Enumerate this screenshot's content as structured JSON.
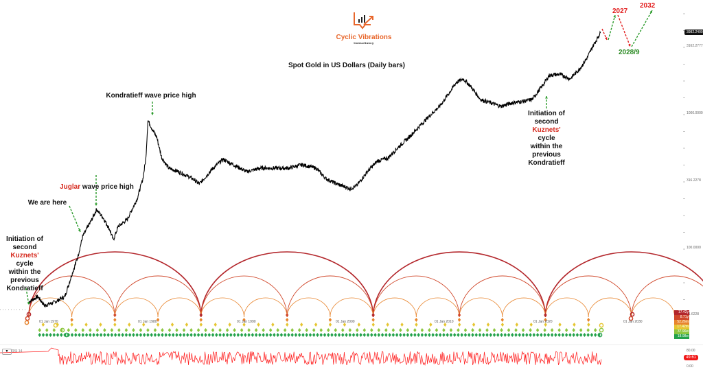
{
  "logo": {
    "name": "Cyclic Vibrations",
    "subtitle": "Consultancy",
    "color": "#e8672c"
  },
  "title": "Spot Gold in US Dollars (Daily bars)",
  "annotations": {
    "kondratieff": "Kondratieff wave price high",
    "juglar_word": "Juglar",
    "juglar_rest": " wave price high",
    "we_are_here": "We are here",
    "left_init_1": "Initiation of",
    "left_init_2": "second",
    "kuznets_word": "Kuznets'",
    "cycle_word": " cycle",
    "within": "within the",
    "previous": "previous",
    "kondratieff_word": "Kondratieff",
    "forecast_2027": "2027",
    "forecast_2028": "2028/9",
    "forecast_2032": "2032"
  },
  "price_axis": {
    "scale": "log",
    "ticks": [
      "3162.2777",
      "1000.0000",
      "316.2278",
      "100.0000",
      "31.6228"
    ],
    "last_price": "3982.2400"
  },
  "time_axis": {
    "ticks": [
      "01 Jan 1970",
      "01 Jan 1980",
      "01 Jan 1990",
      "01 Jan 2000",
      "01 Jan 2010",
      "01 Jan 2020",
      "01 Jan 2030"
    ]
  },
  "cycle_legend": [
    {
      "label": "17.42y",
      "color": "#b3262b"
    },
    {
      "label": "8.71y",
      "color": "#d0472a"
    },
    {
      "label": "52.26m",
      "color": "#e8852e"
    },
    {
      "label": "17.42m",
      "color": "#e6c531"
    },
    {
      "label": "37.96w",
      "color": "#8cc63f"
    },
    {
      "label": "18.98w",
      "color": "#22a24a"
    }
  ],
  "rsi": {
    "label": "RSI 14",
    "ticks": [
      "80.00",
      "0.00"
    ],
    "value": "49.61",
    "color": "#ff1a1a"
  },
  "chart_data": {
    "type": "line",
    "title": "Spot Gold in US Dollars (Daily bars)",
    "yscale": "log",
    "ylim": [
      20,
      5000
    ],
    "xlim": [
      1966.2,
      2032.4
    ],
    "series": [
      {
        "x": [
          1968.06,
          1968.96,
          1969.65,
          1970.7,
          1971.7,
          1972.4,
          1973.0,
          1973.5,
          1974.5,
          1974.9,
          1975.6,
          1976.25,
          1976.6,
          1977.1,
          1978.0,
          1979.0,
          1979.6,
          1979.9,
          1980.1,
          1980.6,
          1981.0,
          1981.5,
          1982.2,
          1983.2,
          1984.6,
          1985.3,
          1986.7,
          1987.7,
          1988.75,
          1990.1,
          1991.5,
          1994.3,
          1995.7,
          1997.1,
          1998.1,
          1999.2,
          2000.6,
          2001.25,
          2002.3,
          2003.3,
          2004.4,
          2005.4,
          2006.5,
          2007.5,
          2008.5,
          2009.6,
          2010.6,
          2011.3,
          2012.0,
          2012.7,
          2013.75,
          2014.8,
          2015.8,
          2016.9,
          2017.9,
          2018.96,
          2020.0,
          2020.7,
          2021.75,
          2022.8,
          2023.8,
          2024.5,
          2025.2,
          2025.9
        ],
        "y": [
          39.5,
          43.4,
          37.2,
          39.5,
          43.4,
          63,
          85,
          121,
          166,
          193,
          166,
          136,
          114,
          144,
          162,
          230,
          327,
          466,
          890,
          745,
          662,
          466,
          391,
          368,
          327,
          298,
          391,
          455,
          414,
          368,
          391,
          391,
          414,
          391,
          327,
          298,
          275,
          291,
          368,
          440,
          466,
          556,
          662,
          791,
          942,
          1125,
          1423,
          1698,
          1800,
          1600,
          1265,
          1193,
          1125,
          1193,
          1221,
          1265,
          1600,
          1910,
          1953,
          1800,
          2148,
          2560,
          3236,
          3982
        ]
      }
    ],
    "cycle_troughs": [
      1968.05,
      1976.6,
      1985.5,
      1995.0,
      2003.75,
      2012.2,
      2020.35,
      2029.0
    ],
    "cycle_periods_years": [
      17.42,
      8.71,
      4.355,
      1.452,
      0.73,
      0.365
    ]
  }
}
